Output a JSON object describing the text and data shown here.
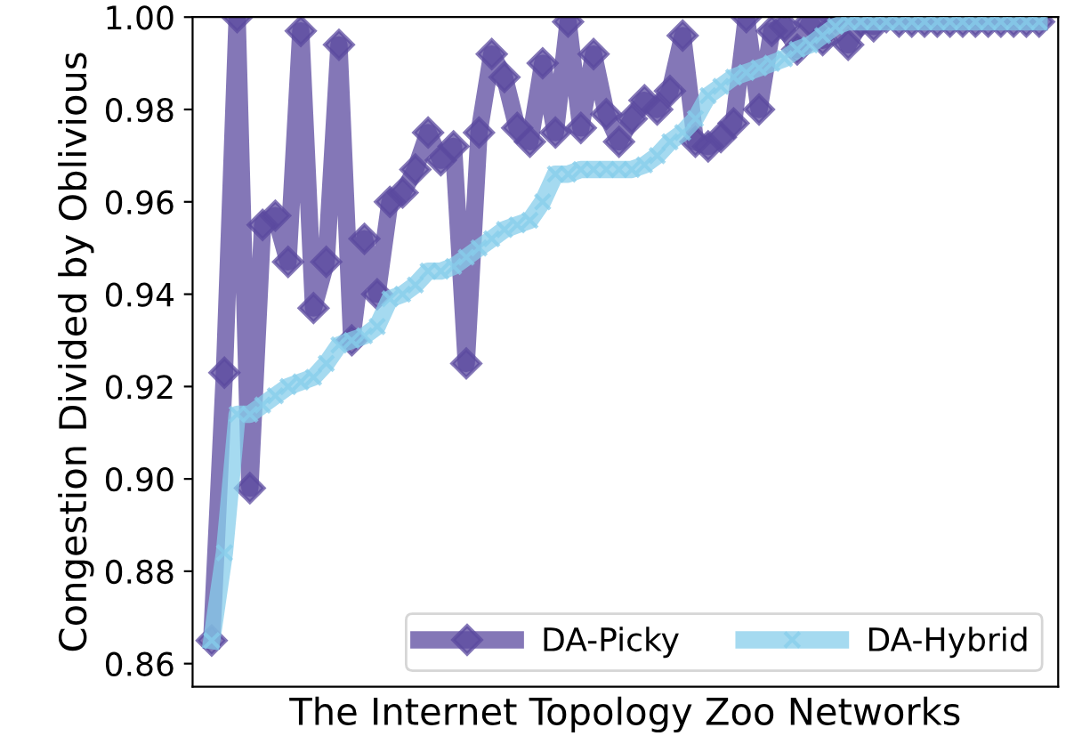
{
  "chart_data": {
    "type": "line",
    "xlabel": "The Internet Topology Zoo Networks",
    "ylabel": "Congestion Divided by Oblivious",
    "categories": [
      null,
      null,
      null,
      null,
      null,
      null,
      null,
      null,
      null,
      null,
      null,
      null,
      null,
      null,
      null,
      null,
      null,
      null,
      null,
      null,
      null,
      null,
      null,
      null,
      null,
      null,
      null,
      null,
      null,
      null,
      null,
      null,
      null,
      null,
      null,
      null,
      null,
      null,
      null,
      null,
      null,
      null,
      null,
      null,
      null,
      null,
      null,
      null,
      null,
      null,
      null,
      null,
      null,
      null,
      null,
      null,
      null,
      null,
      null,
      null,
      null,
      null,
      null,
      null,
      null,
      null
    ],
    "series": [
      {
        "name": "DA-Picky",
        "color": "#5b4a9f",
        "marker": "diamond",
        "values": [
          0.865,
          0.923,
          1.0,
          0.898,
          0.955,
          0.957,
          0.947,
          0.997,
          0.937,
          0.947,
          0.994,
          0.93,
          0.952,
          0.94,
          0.96,
          0.962,
          0.967,
          0.975,
          0.969,
          0.972,
          0.925,
          0.975,
          0.992,
          0.987,
          0.976,
          0.973,
          0.99,
          0.975,
          0.999,
          0.976,
          0.992,
          0.979,
          0.973,
          0.978,
          0.982,
          0.98,
          0.984,
          0.996,
          0.973,
          0.972,
          0.974,
          0.977,
          1.0,
          0.98,
          0.997,
          0.998,
          0.993,
          0.999,
          0.995,
          1.0,
          0.994,
          0.999,
          0.998,
          1.0,
          0.999,
          0.999,
          0.999,
          0.999,
          0.999,
          0.999,
          0.999,
          0.999,
          0.999,
          0.999,
          0.999,
          0.999
        ]
      },
      {
        "name": "DA-Hybrid",
        "color": "#87ceeb",
        "marker": "cross",
        "values": [
          0.865,
          0.884,
          0.914,
          0.914,
          0.916,
          0.918,
          0.92,
          0.921,
          0.922,
          0.925,
          0.929,
          0.93,
          0.931,
          0.933,
          0.939,
          0.94,
          0.942,
          0.945,
          0.945,
          0.946,
          0.948,
          0.95,
          0.952,
          0.954,
          0.955,
          0.956,
          0.96,
          0.966,
          0.966,
          0.967,
          0.967,
          0.967,
          0.967,
          0.967,
          0.968,
          0.97,
          0.973,
          0.975,
          0.978,
          0.983,
          0.985,
          0.987,
          0.988,
          0.989,
          0.99,
          0.991,
          0.993,
          0.994,
          0.996,
          0.998,
          0.999,
          0.999,
          0.999,
          0.999,
          0.999,
          0.999,
          0.999,
          0.999,
          0.999,
          0.999,
          0.999,
          0.999,
          0.999,
          0.999,
          0.999,
          0.999
        ]
      }
    ],
    "ylim": [
      0.855,
      1.0
    ],
    "yticks": [
      {
        "value": 0.86,
        "label": "0.86"
      },
      {
        "value": 0.88,
        "label": "0.88"
      },
      {
        "value": 0.9,
        "label": "0.90"
      },
      {
        "value": 0.92,
        "label": "0.92"
      },
      {
        "value": 0.94,
        "label": "0.94"
      },
      {
        "value": 0.96,
        "label": "0.96"
      },
      {
        "value": 0.98,
        "label": "0.98"
      },
      {
        "value": 1.0,
        "label": "1.00"
      }
    ],
    "tick_labels": "y",
    "legend": "bottom right",
    "grid": false,
    "line_style": "solid"
  }
}
